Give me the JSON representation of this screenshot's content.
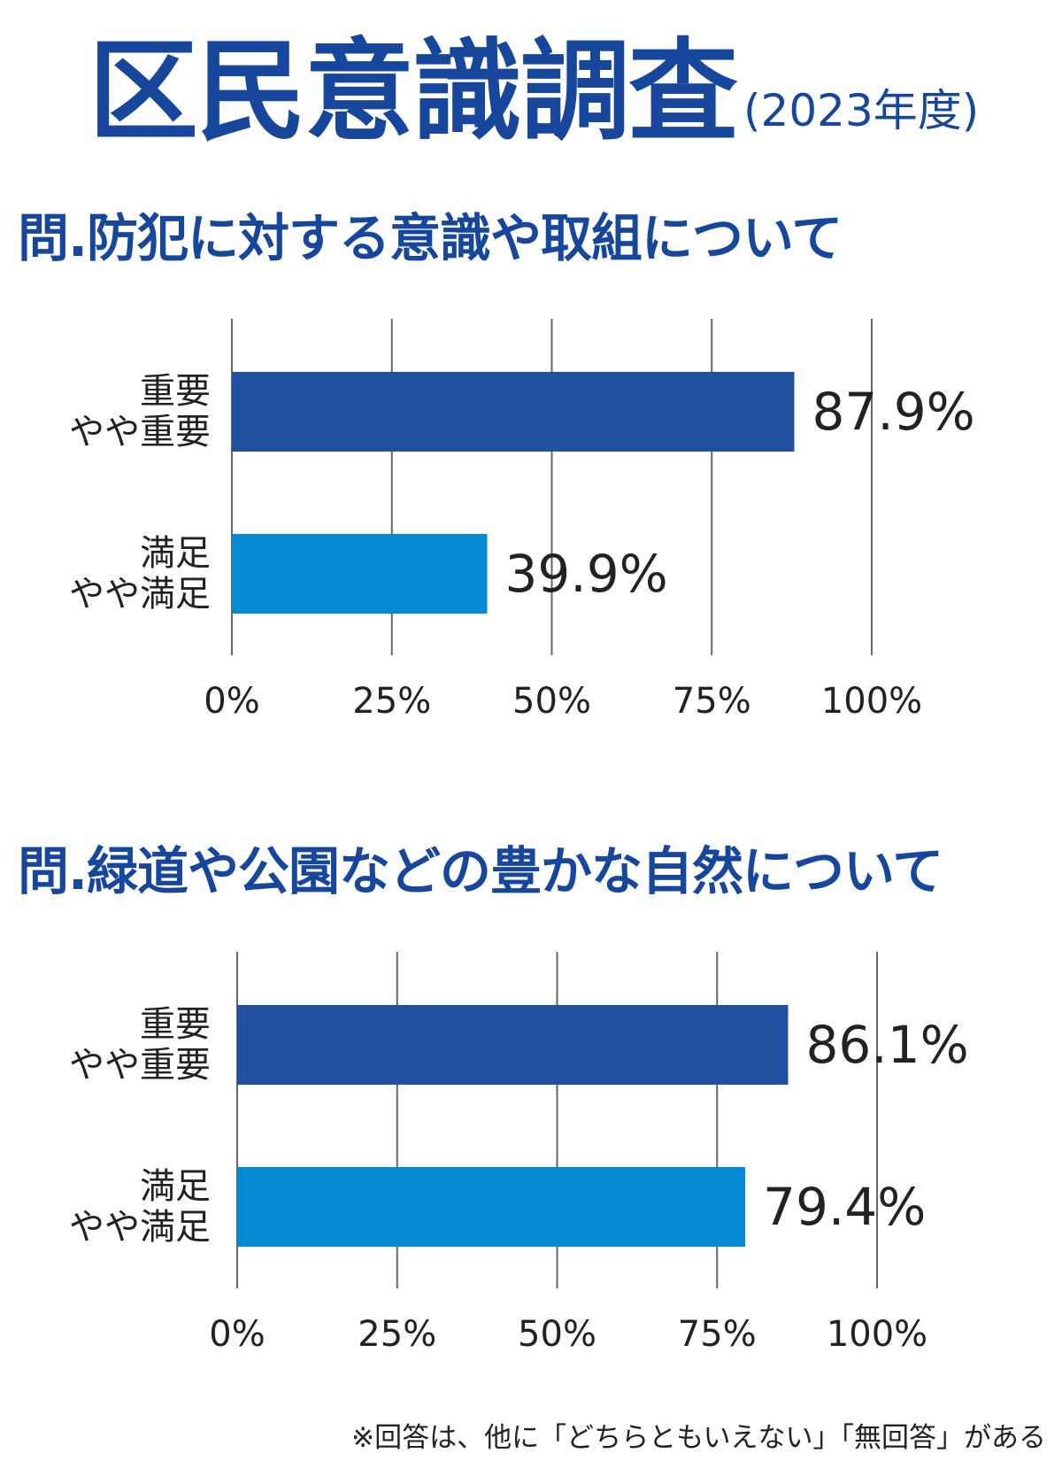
{
  "header": {
    "title": "区民意識調査",
    "year": "(2023年度)"
  },
  "questions": [
    "問.防犯に対する意識や取組について",
    "問.緑道や公園などの豊かな自然について"
  ],
  "footnote": "※回答は、他に「どちらともいえない」「無回答」がある",
  "colors": {
    "dark_bar": "#2150a0",
    "light_bar": "#0589d0",
    "title": "#16479c"
  },
  "chart_data": [
    {
      "type": "bar",
      "orientation": "horizontal",
      "title": "問.防犯に対する意識や取組について",
      "categories": [
        [
          "重要",
          "やや重要"
        ],
        [
          "満足",
          "やや満足"
        ]
      ],
      "values": [
        87.9,
        39.9
      ],
      "value_labels": [
        "87.9%",
        "39.9%"
      ],
      "xlim": [
        0,
        100
      ],
      "xticks": [
        "0%",
        "25%",
        "50%",
        "75%",
        "100%"
      ],
      "grid": true
    },
    {
      "type": "bar",
      "orientation": "horizontal",
      "title": "問.緑道や公園などの豊かな自然について",
      "categories": [
        [
          "重要",
          "やや重要"
        ],
        [
          "満足",
          "やや満足"
        ]
      ],
      "values": [
        86.1,
        79.4
      ],
      "value_labels": [
        "86.1%",
        "79.4%"
      ],
      "xlim": [
        0,
        100
      ],
      "xticks": [
        "0%",
        "25%",
        "50%",
        "75%",
        "100%"
      ],
      "grid": true
    }
  ]
}
